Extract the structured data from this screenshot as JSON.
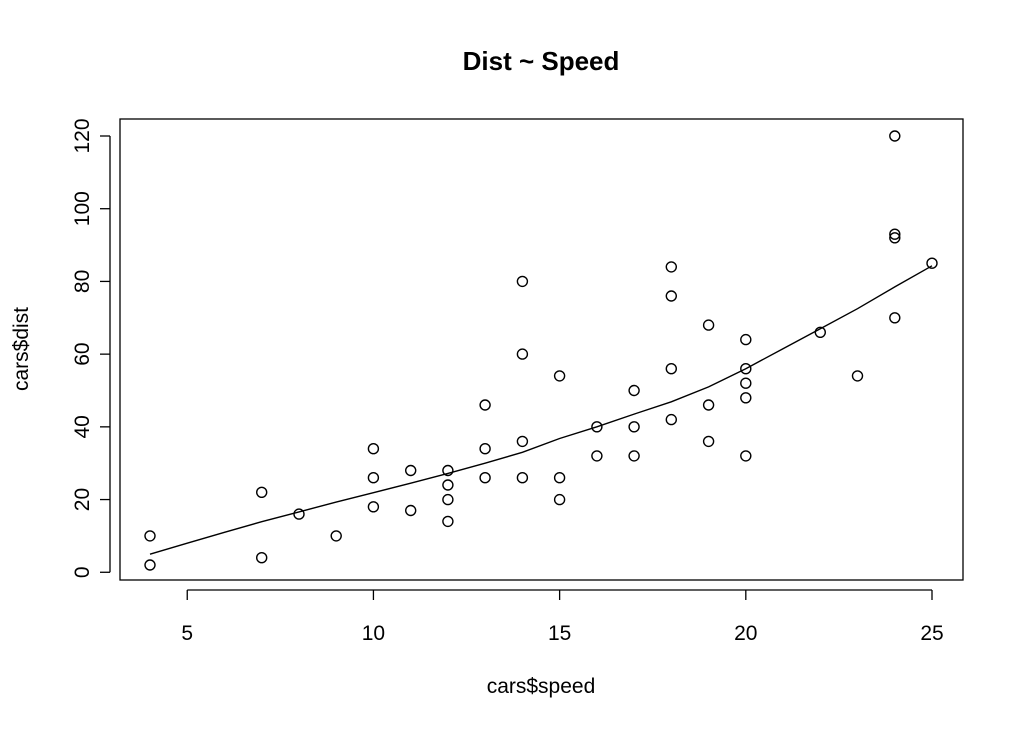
{
  "chart_data": {
    "type": "scatter",
    "title": "Dist ~ Speed",
    "xlabel": "cars$speed",
    "ylabel": "cars$dist",
    "xlim": [
      4,
      25
    ],
    "ylim": [
      2,
      120
    ],
    "xticks": [
      5,
      10,
      15,
      20,
      25
    ],
    "yticks": [
      0,
      20,
      40,
      60,
      80,
      100,
      120
    ],
    "grid": false,
    "colors": {
      "points": "#000000",
      "line": "#000000",
      "box": "#000000",
      "background": "#ffffff"
    },
    "points": [
      {
        "x": 4,
        "y": 2
      },
      {
        "x": 4,
        "y": 10
      },
      {
        "x": 7,
        "y": 4
      },
      {
        "x": 7,
        "y": 22
      },
      {
        "x": 8,
        "y": 16
      },
      {
        "x": 9,
        "y": 10
      },
      {
        "x": 10,
        "y": 18
      },
      {
        "x": 10,
        "y": 26
      },
      {
        "x": 10,
        "y": 34
      },
      {
        "x": 11,
        "y": 17
      },
      {
        "x": 11,
        "y": 28
      },
      {
        "x": 12,
        "y": 14
      },
      {
        "x": 12,
        "y": 20
      },
      {
        "x": 12,
        "y": 24
      },
      {
        "x": 12,
        "y": 28
      },
      {
        "x": 13,
        "y": 26
      },
      {
        "x": 13,
        "y": 34
      },
      {
        "x": 13,
        "y": 46
      },
      {
        "x": 14,
        "y": 26
      },
      {
        "x": 14,
        "y": 36
      },
      {
        "x": 14,
        "y": 60
      },
      {
        "x": 14,
        "y": 80
      },
      {
        "x": 15,
        "y": 20
      },
      {
        "x": 15,
        "y": 26
      },
      {
        "x": 15,
        "y": 54
      },
      {
        "x": 16,
        "y": 32
      },
      {
        "x": 16,
        "y": 40
      },
      {
        "x": 17,
        "y": 32
      },
      {
        "x": 17,
        "y": 40
      },
      {
        "x": 17,
        "y": 50
      },
      {
        "x": 18,
        "y": 42
      },
      {
        "x": 18,
        "y": 56
      },
      {
        "x": 18,
        "y": 76
      },
      {
        "x": 18,
        "y": 84
      },
      {
        "x": 19,
        "y": 36
      },
      {
        "x": 19,
        "y": 46
      },
      {
        "x": 19,
        "y": 68
      },
      {
        "x": 20,
        "y": 32
      },
      {
        "x": 20,
        "y": 48
      },
      {
        "x": 20,
        "y": 52
      },
      {
        "x": 20,
        "y": 56
      },
      {
        "x": 20,
        "y": 64
      },
      {
        "x": 22,
        "y": 66
      },
      {
        "x": 23,
        "y": 54
      },
      {
        "x": 24,
        "y": 70
      },
      {
        "x": 24,
        "y": 92
      },
      {
        "x": 24,
        "y": 93
      },
      {
        "x": 24,
        "y": 120
      },
      {
        "x": 25,
        "y": 85
      }
    ],
    "smooth_line": [
      {
        "x": 4,
        "y": 4.97
      },
      {
        "x": 5,
        "y": 8.0
      },
      {
        "x": 6,
        "y": 11.0
      },
      {
        "x": 7,
        "y": 13.9
      },
      {
        "x": 8,
        "y": 16.6
      },
      {
        "x": 9,
        "y": 19.3
      },
      {
        "x": 10,
        "y": 21.9
      },
      {
        "x": 11,
        "y": 24.5
      },
      {
        "x": 12,
        "y": 27.2
      },
      {
        "x": 13,
        "y": 30.0
      },
      {
        "x": 14,
        "y": 33.0
      },
      {
        "x": 15,
        "y": 36.8
      },
      {
        "x": 16,
        "y": 40.0
      },
      {
        "x": 17,
        "y": 43.5
      },
      {
        "x": 18,
        "y": 46.9
      },
      {
        "x": 19,
        "y": 51.0
      },
      {
        "x": 20,
        "y": 56.0
      },
      {
        "x": 21,
        "y": 61.5
      },
      {
        "x": 22,
        "y": 67.0
      },
      {
        "x": 23,
        "y": 72.5
      },
      {
        "x": 24,
        "y": 78.5
      },
      {
        "x": 25,
        "y": 84.3
      }
    ]
  }
}
